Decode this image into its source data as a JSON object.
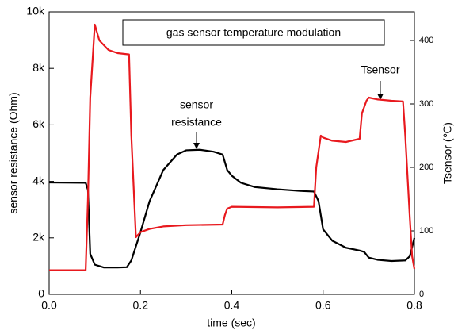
{
  "chart_data": {
    "type": "line",
    "title": "gas sensor temperature modulation",
    "xlabel": "time (sec)",
    "ylabel": "sensor resistance (Ohm)",
    "y2label": "Tsensor (℃)",
    "annotations": [
      [
        "sensor",
        "resistance"
      ],
      [
        "Tsensor"
      ]
    ],
    "xlim": [
      0,
      0.8
    ],
    "xticks": [
      {
        "value": 0,
        "label": "0.0"
      },
      0.2,
      0.4,
      0.6,
      0.8
    ],
    "ylim": [
      0,
      10000
    ],
    "yticks": [
      0,
      {
        "value": 2000,
        "label": "2k"
      },
      {
        "value": 4000,
        "label": "4k"
      },
      {
        "value": 6000,
        "label": "6k"
      },
      {
        "value": 8000,
        "label": "8k"
      },
      {
        "value": 10000,
        "label": "10k"
      }
    ],
    "y2lim": [
      0,
      445
    ],
    "y2ticks": [
      0,
      100,
      200,
      300,
      400
    ],
    "series": [
      {
        "color": "#000000",
        "axis": "y",
        "x": [
          0,
          0.08,
          0.085,
          0.09,
          0.1,
          0.12,
          0.15,
          0.17,
          0.18,
          0.2,
          0.22,
          0.25,
          0.28,
          0.3,
          0.33,
          0.36,
          0.38,
          0.39,
          0.4,
          0.42,
          0.45,
          0.5,
          0.55,
          0.58,
          0.59,
          0.6,
          0.62,
          0.65,
          0.68,
          0.69,
          0.7,
          0.72,
          0.75,
          0.78,
          0.79,
          0.8
        ],
        "values": [
          3960,
          3950,
          3700,
          1430,
          1050,
          950,
          950,
          960,
          1200,
          2200,
          3300,
          4400,
          4950,
          5100,
          5120,
          5050,
          4950,
          4400,
          4200,
          3950,
          3800,
          3720,
          3660,
          3640,
          3300,
          2300,
          1900,
          1650,
          1550,
          1500,
          1300,
          1220,
          1180,
          1200,
          1350,
          2000
        ]
      },
      {
        "color": "#e8191e",
        "axis": "y2",
        "x": [
          0,
          0.08,
          0.085,
          0.09,
          0.1,
          0.11,
          0.13,
          0.15,
          0.175,
          0.18,
          0.19,
          0.2,
          0.22,
          0.25,
          0.3,
          0.38,
          0.385,
          0.39,
          0.4,
          0.5,
          0.58,
          0.585,
          0.595,
          0.6,
          0.62,
          0.65,
          0.68,
          0.685,
          0.695,
          0.7,
          0.72,
          0.75,
          0.775,
          0.78,
          0.79,
          0.795,
          0.8
        ],
        "values": [
          38,
          38,
          150,
          310,
          425,
          400,
          385,
          380,
          378,
          250,
          90,
          98,
          103,
          107,
          109,
          110,
          125,
          135,
          138,
          137,
          138,
          200,
          250,
          247,
          242,
          240,
          245,
          285,
          305,
          310,
          307,
          305,
          304,
          250,
          120,
          60,
          40
        ]
      }
    ]
  }
}
